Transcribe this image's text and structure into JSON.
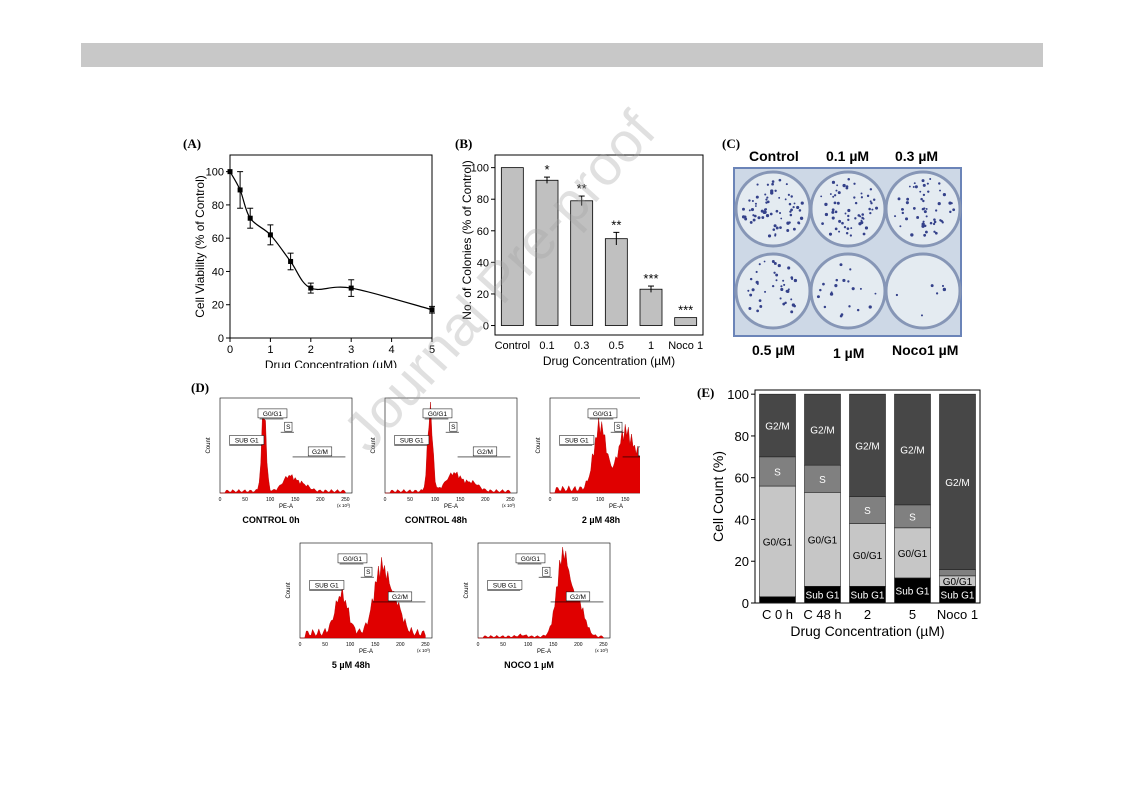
{
  "watermark": "Journal Pre-proof",
  "panels": {
    "A": {
      "label": "(A)"
    },
    "B": {
      "label": "(B)"
    },
    "C": {
      "label": "(C)",
      "wells": [
        "Control",
        "0.1 µM",
        "0.3 µM",
        "0.5 µM",
        "1 µM",
        "Noco1 µM"
      ]
    },
    "D": {
      "label": "(D)",
      "plots": [
        {
          "caption": "CONTROL 0h"
        },
        {
          "caption": "CONTROL 48h"
        },
        {
          "caption": "2 µM 48h"
        },
        {
          "caption": "5 µM 48h"
        },
        {
          "caption": "NOCO 1 µM"
        }
      ],
      "xlabel": "PE-A",
      "ylabel": "Count",
      "xunit": "(x 10³)",
      "gates": {
        "sub": "SUB G1",
        "g0": "G0/G1",
        "s": "S",
        "g2": "G2/M"
      },
      "xticks": [
        "0",
        "50",
        "100",
        "150",
        "200",
        "250"
      ]
    },
    "E": {
      "label": "(E)"
    }
  },
  "chart_data": [
    {
      "type": "line",
      "xlabel": "Drug Concentration (µM)",
      "ylabel": "Cell Viability (% of Control)",
      "xlim": [
        0,
        5
      ],
      "ylim": [
        0,
        110
      ],
      "xticks": [
        0,
        1,
        2,
        3,
        4,
        5
      ],
      "yticks": [
        0,
        20,
        40,
        60,
        80,
        100
      ],
      "x": [
        0,
        0.25,
        0.5,
        1,
        1.5,
        2,
        3,
        5
      ],
      "y": [
        100,
        89,
        72,
        62,
        46,
        30,
        30,
        17
      ],
      "err": [
        0,
        11,
        6,
        6,
        5,
        3,
        5,
        2
      ]
    },
    {
      "type": "bar",
      "xlabel": "Drug Concentration (µM)",
      "ylabel": "No. of Colonies (% of Control)",
      "ylim": [
        -6,
        108
      ],
      "yticks": [
        0,
        20,
        40,
        60,
        80,
        100
      ],
      "categories": [
        "Control",
        "0.1",
        "0.3",
        "0.5",
        "1",
        "Noco 1"
      ],
      "values": [
        100,
        92,
        79,
        55,
        23,
        5
      ],
      "err": [
        0,
        2,
        3,
        4,
        2,
        0
      ],
      "annotations": [
        "",
        "*",
        "**",
        "**",
        "***",
        "***"
      ]
    },
    {
      "type": "bar",
      "stacked": true,
      "xlabel": "Drug Concentration (µM)",
      "ylabel": "Cell Count (%)",
      "ylim": [
        0,
        102
      ],
      "yticks": [
        0,
        20,
        40,
        60,
        80,
        100
      ],
      "categories": [
        "C 0 h",
        "C 48 h",
        "2",
        "5",
        "Noco 1"
      ],
      "series": [
        {
          "name": "Sub G1",
          "color": "#000000",
          "values": [
            3,
            8,
            8,
            12,
            8
          ]
        },
        {
          "name": "G0/G1",
          "color": "#c6c6c6",
          "values": [
            53,
            45,
            30,
            24,
            5
          ]
        },
        {
          "name": "S",
          "color": "#808080",
          "values": [
            14,
            13,
            13,
            11,
            3
          ]
        },
        {
          "name": "G2/M",
          "color": "#474747",
          "values": [
            30,
            34,
            49,
            53,
            84
          ]
        }
      ]
    }
  ]
}
